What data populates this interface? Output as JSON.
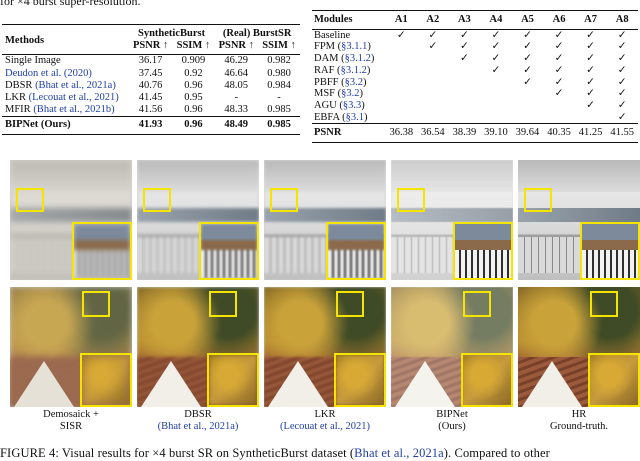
{
  "caption_top": "for ×4 burst super-resolution.",
  "table1": {
    "col_methods": "Methods",
    "group1": "SyntheticBurst",
    "group2": "(Real) BurstSR",
    "metrics": [
      "PSNR ↑",
      "SSIM ↑",
      "PSNR ↑",
      "SSIM ↑"
    ],
    "rows": [
      {
        "method": "Single Image",
        "cite": "",
        "values": [
          "36.17",
          "0.909",
          "46.29",
          "0.982"
        ]
      },
      {
        "method": "",
        "cite": "Deudon et al. (2020)",
        "values": [
          "37.45",
          "0.92",
          "46.64",
          "0.980"
        ]
      },
      {
        "method": "DBSR ",
        "cite": "(Bhat et al., 2021a)",
        "values": [
          "40.76",
          "0.96",
          "48.05",
          "0.984"
        ]
      },
      {
        "method": "LKR ",
        "cite": "(Lecouat et al., 2021)",
        "values": [
          "41.45",
          "0.95",
          "-",
          "-"
        ]
      },
      {
        "method": "MFIR ",
        "cite": "(Bhat et al., 2021b)",
        "values": [
          "41.56",
          "0.96",
          "48.33",
          "0.985"
        ]
      }
    ],
    "final": {
      "method": "BIPNet (Ours)",
      "values": [
        "41.93",
        "0.96",
        "48.49",
        "0.985"
      ]
    }
  },
  "table2": {
    "header": [
      "Modules",
      "A1",
      "A2",
      "A3",
      "A4",
      "A5",
      "A6",
      "A7",
      "A8"
    ],
    "rows": [
      {
        "name": "Baseline",
        "cite": "",
        "checks": [
          "✓",
          "✓",
          "✓",
          "✓",
          "✓",
          "✓",
          "✓",
          "✓"
        ]
      },
      {
        "name": "FPM (",
        "cite": "§3.1.1",
        "checks": [
          "",
          "✓",
          "✓",
          "✓",
          "✓",
          "✓",
          "✓",
          "✓"
        ]
      },
      {
        "name": "DAM (",
        "cite": "§3.1.2",
        "checks": [
          "",
          "",
          "✓",
          "✓",
          "✓",
          "✓",
          "✓",
          "✓"
        ]
      },
      {
        "name": "RAF (",
        "cite": "§3.1.2",
        "checks": [
          "",
          "",
          "",
          "✓",
          "✓",
          "✓",
          "✓",
          "✓"
        ]
      },
      {
        "name": "PBFF (",
        "cite": "§3.2",
        "checks": [
          "",
          "",
          "",
          "",
          "✓",
          "✓",
          "✓",
          "✓"
        ]
      },
      {
        "name": "MSF (",
        "cite": "§3.2",
        "checks": [
          "",
          "",
          "",
          "",
          "",
          "✓",
          "✓",
          "✓"
        ]
      },
      {
        "name": "AGU (",
        "cite": "§3.3",
        "checks": [
          "",
          "",
          "",
          "",
          "",
          "",
          "✓",
          "✓"
        ]
      },
      {
        "name": "EBFA (",
        "cite": "§3.1",
        "checks": [
          "",
          "",
          "",
          "",
          "",
          "",
          "",
          "✓"
        ]
      }
    ],
    "psnr_label": "PSNR",
    "psnr": [
      "36.38",
      "36.54",
      "38.39",
      "39.10",
      "39.64",
      "40.35",
      "41.25",
      "41.55"
    ]
  },
  "columns": [
    {
      "line1": "Demosaick +",
      "line2": "SISR",
      "cite": ""
    },
    {
      "line1": "DBSR",
      "line2": "",
      "cite": "(Bhat et al., 2021a)"
    },
    {
      "line1": "LKR",
      "line2": "",
      "cite": "(Lecouat et al., 2021)"
    },
    {
      "line1": "BIPNet",
      "line2": "(Ours)",
      "cite": ""
    },
    {
      "line1": "HR",
      "line2": "Ground-truth.",
      "cite": ""
    }
  ],
  "caption_bottom": {
    "prefix": "FIGURE 4: Visual results for ×4 burst SR on SyntheticBurst dataset (",
    "cite": "Bhat et al., 2021a",
    "suffix": "). Compared to other"
  },
  "colors": {
    "highlight": "#f5e400",
    "link": "#1f3fa8"
  }
}
